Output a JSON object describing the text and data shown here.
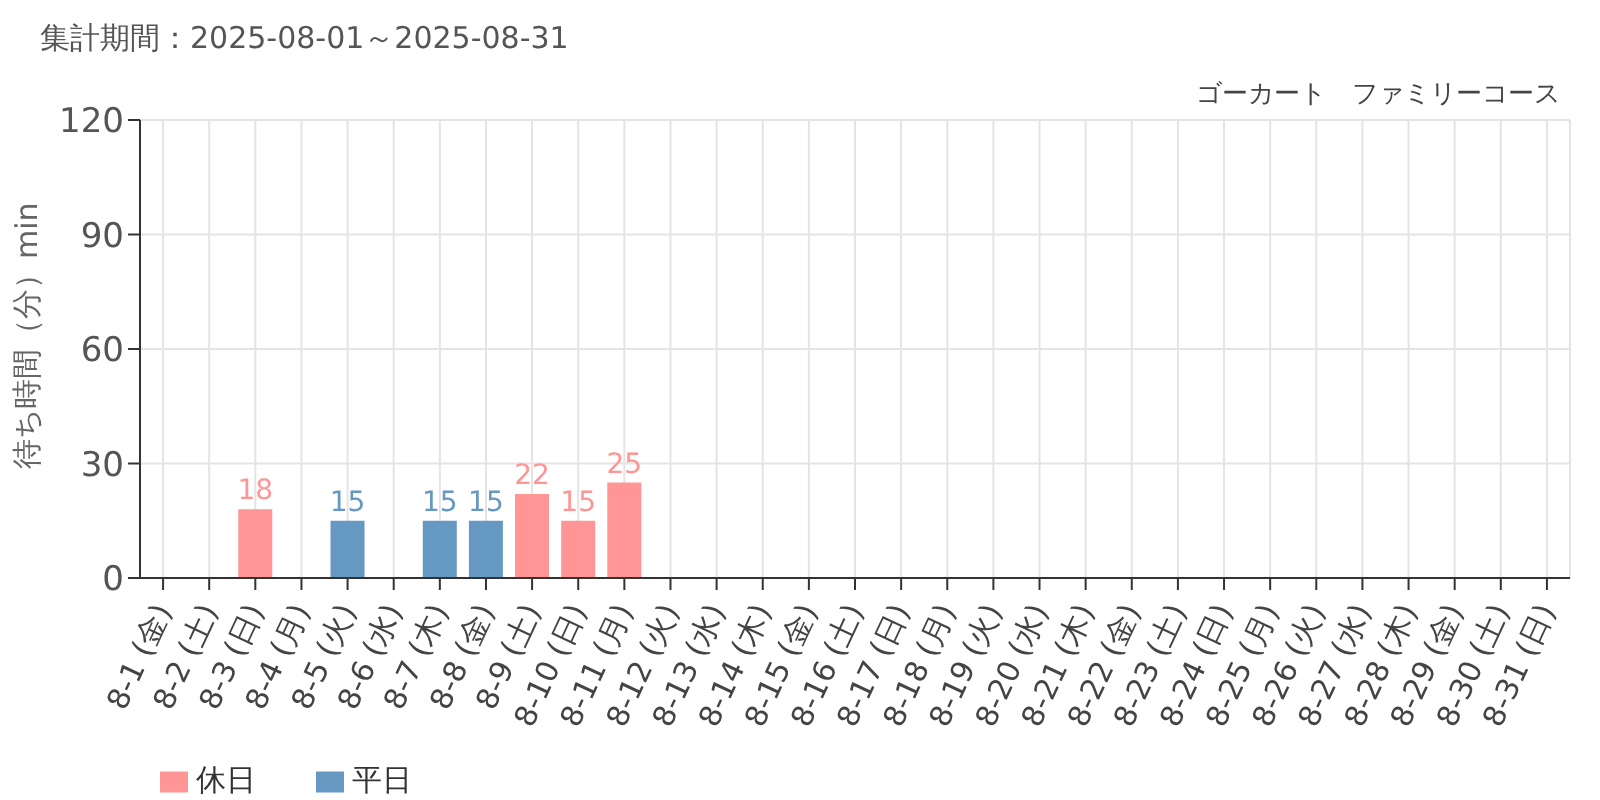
{
  "chart_data": {
    "type": "bar",
    "title": "ゴーカート　ファミリーコース",
    "subtitle": "集計期間：2025-08-01～2025-08-31",
    "ylabel": "待ち時間（分）min",
    "categories": [
      "8-1 (金)",
      "8-2 (土)",
      "8-3 (日)",
      "8-4 (月)",
      "8-5 (火)",
      "8-6 (水)",
      "8-7 (木)",
      "8-8 (金)",
      "8-9 (土)",
      "8-10 (日)",
      "8-11 (月)",
      "8-12 (火)",
      "8-13 (水)",
      "8-14 (木)",
      "8-15 (金)",
      "8-16 (土)",
      "8-17 (日)",
      "8-18 (月)",
      "8-19 (火)",
      "8-20 (水)",
      "8-21 (木)",
      "8-22 (金)",
      "8-23 (土)",
      "8-24 (日)",
      "8-25 (月)",
      "8-26 (火)",
      "8-27 (水)",
      "8-28 (木)",
      "8-29 (金)",
      "8-30 (土)",
      "8-31 (日)"
    ],
    "series": [
      {
        "name": "平日",
        "color": "#6699c2",
        "values": [
          null,
          null,
          null,
          null,
          15,
          null,
          15,
          15,
          null,
          null,
          null,
          null,
          null,
          null,
          null,
          null,
          null,
          null,
          null,
          null,
          null,
          null,
          null,
          null,
          null,
          null,
          null,
          null,
          null,
          null,
          null
        ]
      },
      {
        "name": "休日",
        "color": "#ff9595",
        "values": [
          null,
          null,
          18,
          null,
          null,
          null,
          null,
          null,
          22,
          15,
          25,
          null,
          null,
          null,
          null,
          null,
          null,
          null,
          null,
          null,
          null,
          null,
          null,
          null,
          null,
          null,
          null,
          null,
          null,
          null,
          null
        ]
      }
    ],
    "stacked": true,
    "ylim": [
      0,
      120
    ],
    "yticks": [
      0,
      30,
      60,
      90,
      120
    ],
    "grid": true,
    "legend": "bottom left",
    "data_labels": true
  }
}
